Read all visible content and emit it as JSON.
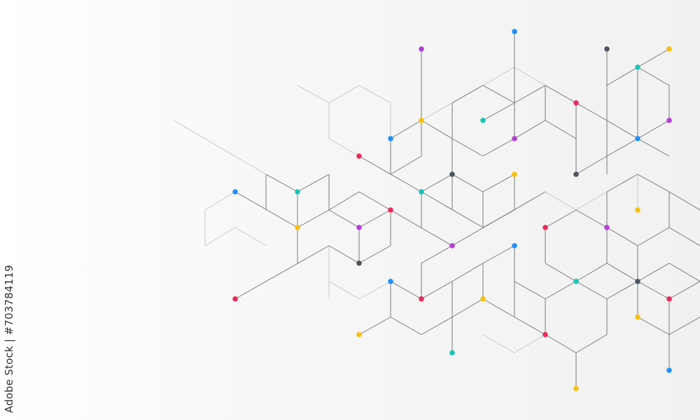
{
  "watermark": {
    "text": "Adobe Stock | #703784119"
  },
  "colors": {
    "line": "#7a7a7a",
    "line_light": "#c8c8c8",
    "blue": "#1e90ff",
    "purple": "#b23fd6",
    "dark": "#4a5560",
    "yellow": "#f7c20a",
    "teal": "#18c5b5",
    "red": "#ec2a5c"
  }
}
